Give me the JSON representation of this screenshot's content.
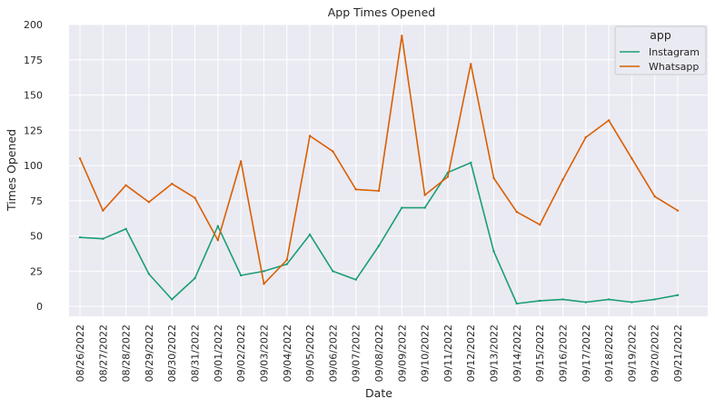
{
  "chart_data": {
    "type": "line",
    "title": "App Times Opened",
    "xlabel": "Date",
    "ylabel": "Times Opened",
    "ylim": [
      -7,
      200
    ],
    "yticks": [
      0,
      25,
      50,
      75,
      100,
      125,
      150,
      175,
      200
    ],
    "grid": true,
    "legend_placement": "top-right",
    "legend_title": "app",
    "categories": [
      "08/26/2022",
      "08/27/2022",
      "08/28/2022",
      "08/29/2022",
      "08/30/2022",
      "08/31/2022",
      "09/01/2022",
      "09/02/2022",
      "09/03/2022",
      "09/04/2022",
      "09/05/2022",
      "09/06/2022",
      "09/07/2022",
      "09/08/2022",
      "09/09/2022",
      "09/10/2022",
      "09/11/2022",
      "09/12/2022",
      "09/13/2022",
      "09/14/2022",
      "09/15/2022",
      "09/16/2022",
      "09/17/2022",
      "09/18/2022",
      "09/19/2022",
      "09/20/2022",
      "09/21/2022"
    ],
    "series": [
      {
        "name": "Instagram",
        "color": "#1b9e77",
        "values": [
          49,
          48,
          55,
          23,
          5,
          20,
          57,
          22,
          25,
          30,
          51,
          25,
          19,
          43,
          70,
          70,
          95,
          102,
          39,
          2,
          4,
          5,
          3,
          5,
          3,
          5,
          8
        ]
      },
      {
        "name": "Whatsapp",
        "color": "#d95f02",
        "values": [
          105,
          68,
          86,
          74,
          87,
          77,
          47,
          103,
          16,
          33,
          121,
          110,
          83,
          82,
          192,
          79,
          92,
          172,
          91,
          67,
          58,
          90,
          120,
          132,
          105,
          78,
          68
        ]
      }
    ]
  },
  "colors": {
    "plot_background": "#eaeaf2",
    "grid": "#ffffff",
    "legend_background": "#eaeaf2",
    "legend_border": "#cccccc"
  }
}
